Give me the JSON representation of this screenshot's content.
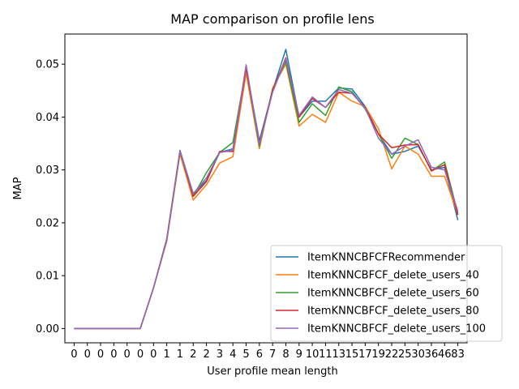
{
  "chart_data": {
    "type": "line",
    "title": "MAP comparison on profile lens",
    "xlabel": "User profile mean length",
    "ylabel": "MAP",
    "categories": [
      "0",
      "0",
      "0",
      "0",
      "0",
      "0",
      "0",
      "1",
      "1",
      "2",
      "2",
      "3",
      "4",
      "5",
      "6",
      "7",
      "8",
      "9",
      "10",
      "11",
      "13",
      "15",
      "17",
      "19",
      "22",
      "25",
      "30",
      "36",
      "46",
      "83"
    ],
    "yticks": [
      0.0,
      0.01,
      0.02,
      0.03,
      0.04,
      0.05
    ],
    "ytick_labels": [
      "0.00",
      "0.01",
      "0.02",
      "0.03",
      "0.04",
      "0.05"
    ],
    "ylim": [
      -0.0027,
      0.0557
    ],
    "grid": false,
    "legend_position": "lower-right",
    "series": [
      {
        "name": "ItemKNNCBFCFRecommender",
        "color": "#1f77b4",
        "values": [
          0,
          0,
          0,
          0,
          0,
          0,
          0.0077,
          0.017,
          0.0337,
          0.0255,
          0.028,
          0.0333,
          0.034,
          0.0493,
          0.0355,
          0.045,
          0.0528,
          0.04,
          0.043,
          0.043,
          0.0455,
          0.0453,
          0.042,
          0.0368,
          0.033,
          0.0335,
          0.0345,
          0.03,
          0.0305,
          0.0205
        ]
      },
      {
        "name": "ItemKNNCBFCF_delete_users_40",
        "color": "#ff7f0e",
        "values": [
          0,
          0,
          0,
          0,
          0,
          0,
          0.0077,
          0.0165,
          0.033,
          0.0243,
          0.0272,
          0.0313,
          0.0325,
          0.0483,
          0.034,
          0.0455,
          0.05,
          0.0383,
          0.0405,
          0.039,
          0.0447,
          0.043,
          0.042,
          0.0378,
          0.0302,
          0.0345,
          0.033,
          0.0288,
          0.0288,
          0.0215
        ]
      },
      {
        "name": "ItemKNNCBFCF_delete_users_60",
        "color": "#2ca02c",
        "values": [
          0,
          0,
          0,
          0,
          0,
          0,
          0.0077,
          0.0168,
          0.0335,
          0.025,
          0.0295,
          0.0333,
          0.0352,
          0.0493,
          0.0345,
          0.0452,
          0.0505,
          0.039,
          0.0425,
          0.0403,
          0.0457,
          0.0448,
          0.0415,
          0.0368,
          0.0322,
          0.036,
          0.0348,
          0.0298,
          0.0315,
          0.0218
        ]
      },
      {
        "name": "ItemKNNCBFCF_delete_users_80",
        "color": "#d62728",
        "values": [
          0,
          0,
          0,
          0,
          0,
          0,
          0.0077,
          0.0168,
          0.0335,
          0.025,
          0.0278,
          0.0335,
          0.0335,
          0.0493,
          0.035,
          0.045,
          0.0512,
          0.04,
          0.0435,
          0.0418,
          0.0447,
          0.0445,
          0.0418,
          0.0368,
          0.0342,
          0.0347,
          0.0348,
          0.0298,
          0.031,
          0.0215
        ]
      },
      {
        "name": "ItemKNNCBFCF_delete_users_100",
        "color": "#9467bd",
        "values": [
          0,
          0,
          0,
          0,
          0,
          0,
          0.0077,
          0.0168,
          0.0335,
          0.0255,
          0.0285,
          0.0333,
          0.0337,
          0.0499,
          0.0348,
          0.0447,
          0.051,
          0.0403,
          0.0438,
          0.0418,
          0.0452,
          0.0445,
          0.0417,
          0.036,
          0.033,
          0.0345,
          0.0357,
          0.0305,
          0.03,
          0.0222
        ]
      }
    ]
  }
}
